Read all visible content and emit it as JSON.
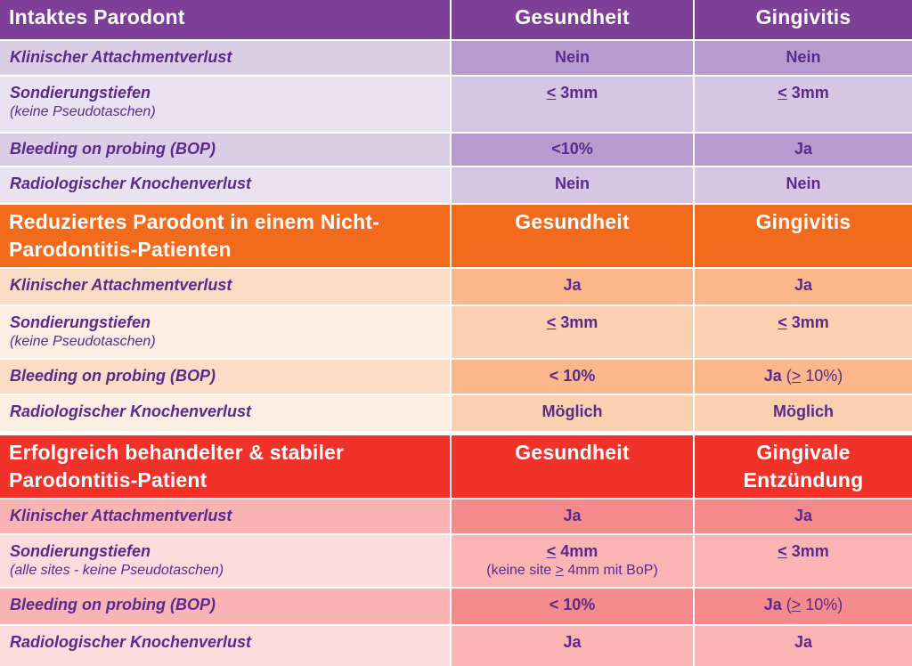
{
  "sections": [
    {
      "header": {
        "title": "Intaktes Parodont",
        "col1": "Gesundheit",
        "col2": "Gingivitis"
      },
      "rows": [
        {
          "label": "Klinischer Attachmentverlust",
          "col1": "Nein",
          "col2": "Nein"
        },
        {
          "label": "Sondierungstiefen",
          "sublabel": "(keine Pseudotaschen)",
          "col1_sym": "<",
          "col1": " 3mm",
          "col2_sym": "<",
          "col2": " 3mm"
        },
        {
          "label": "Bleeding on probing (BOP)",
          "col1": "<10%",
          "col2": "Ja"
        },
        {
          "label": "Radiologischer Knochenverlust",
          "col1": "Nein",
          "col2": "Nein"
        }
      ]
    },
    {
      "header": {
        "title_line1": "Reduziertes Parodont in einem Nicht-",
        "title_line2": "Parodontitis-Patienten",
        "col1": "Gesundheit",
        "col2": "Gingivitis"
      },
      "rows": [
        {
          "label": "Klinischer Attachmentverlust",
          "col1": "Ja",
          "col2": "Ja"
        },
        {
          "label": "Sondierungstiefen",
          "sublabel": "(keine Pseudotaschen)",
          "col1_sym": "<",
          "col1": " 3mm",
          "col2_sym": "<",
          "col2": " 3mm"
        },
        {
          "label": "Bleeding on probing (BOP)",
          "col1": "< 10%",
          "col2": "Ja",
          "col2_note_open": " (",
          "col2_note_sym": ">",
          "col2_note_close": " 10%)"
        },
        {
          "label": "Radiologischer Knochenverlust",
          "col1": "Möglich",
          "col2": "Möglich"
        }
      ]
    },
    {
      "header": {
        "title_line1": "Erfolgreich behandelter & stabiler",
        "title_line2": "Parodontitis-Patient",
        "col1": "Gesundheit",
        "col2_line1": "Gingivale",
        "col2_line2": "Entzündung"
      },
      "rows": [
        {
          "label": "Klinischer Attachmentverlust",
          "col1": "Ja",
          "col2": "Ja"
        },
        {
          "label": "Sondierungstiefen",
          "sublabel": "(alle sites - keine Pseudotaschen)",
          "col1_sym": "<",
          "col1": " 4mm",
          "col1_sub_pre": "(keine site ",
          "col1_sub_sym": ">",
          "col1_sub_post": " 4mm mit BoP)",
          "col2_sym": "<",
          "col2": " 3mm"
        },
        {
          "label": "Bleeding on probing (BOP)",
          "col1": "< 10%",
          "col2": "Ja",
          "col2_note_open": " (",
          "col2_note_sym": ">",
          "col2_note_close": " 10%)"
        },
        {
          "label": "Radiologischer Knochenverlust",
          "col1": "Ja",
          "col2": "Ja"
        }
      ]
    }
  ],
  "colors": {
    "purple_header": "#7d3f98",
    "orange_header": "#f26a1b",
    "red_header": "#f0322b",
    "text": "#5a2a8c"
  }
}
